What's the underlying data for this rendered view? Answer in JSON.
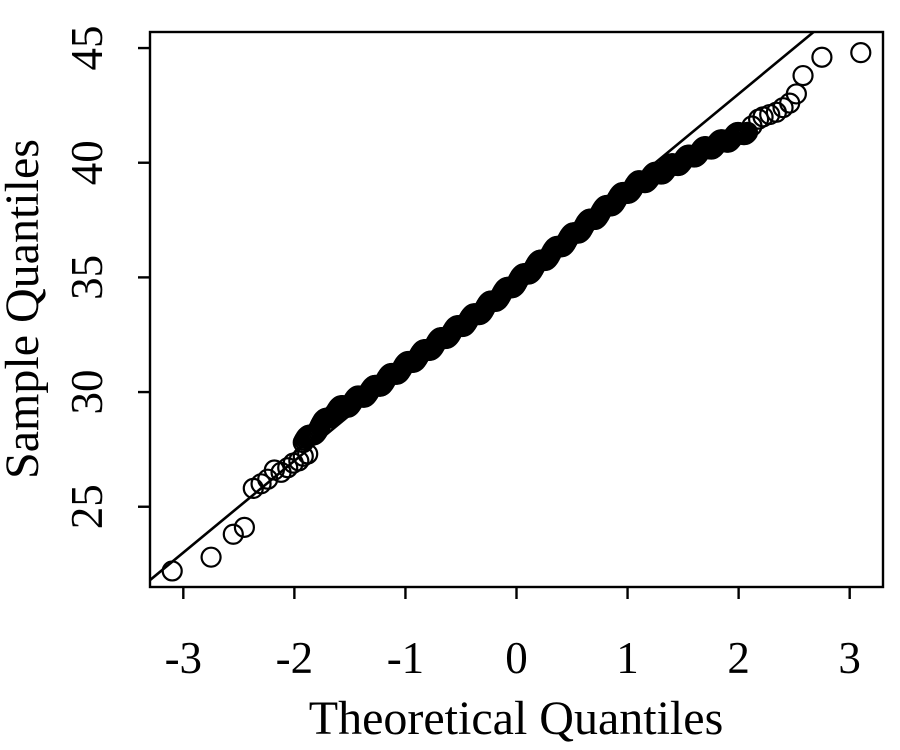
{
  "chart_data": {
    "type": "scatter",
    "title": "",
    "xlabel": "Theoretical Quantiles",
    "ylabel": "Sample Quantiles",
    "xlim": [
      -3.3,
      3.3
    ],
    "ylim": [
      21.5,
      45.7
    ],
    "xticks": [
      -3,
      -2,
      -1,
      0,
      1,
      2,
      3
    ],
    "yticks": [
      25,
      30,
      35,
      40,
      45
    ],
    "xtick_labels": [
      "-3",
      "-2",
      "-1",
      "0",
      "1",
      "2",
      "3"
    ],
    "ytick_labels": [
      "25",
      "30",
      "35",
      "40",
      "45"
    ],
    "grid": false,
    "legend": "none",
    "marker": "open-circle",
    "reference_line": {
      "intercept": 35.0,
      "slope": 4.0
    },
    "series": [
      {
        "points": [
          [
            -3.1,
            22.2
          ],
          [
            -2.75,
            22.8
          ],
          [
            -2.55,
            23.8
          ],
          [
            -2.45,
            24.1
          ],
          [
            -2.37,
            25.8
          ],
          [
            -2.3,
            26.0
          ],
          [
            -2.24,
            26.2
          ],
          [
            -2.18,
            26.6
          ],
          [
            -2.12,
            26.5
          ],
          [
            -2.06,
            26.7
          ],
          [
            -2.01,
            26.9
          ],
          [
            -1.96,
            27.0
          ],
          [
            -1.92,
            27.2
          ],
          [
            -1.88,
            27.3
          ]
        ]
      },
      {
        "points": [
          [
            2.12,
            41.6
          ],
          [
            2.18,
            41.9
          ],
          [
            2.22,
            42.0
          ],
          [
            2.28,
            42.1
          ],
          [
            2.34,
            42.2
          ],
          [
            2.4,
            42.4
          ],
          [
            2.46,
            42.6
          ],
          [
            2.52,
            43.0
          ],
          [
            2.58,
            43.8
          ],
          [
            2.75,
            44.6
          ],
          [
            3.1,
            44.8
          ]
        ]
      }
    ],
    "dense_band": {
      "x_from": -1.92,
      "x_to": 2.08,
      "count": 400,
      "profile": [
        [
          -1.92,
          27.8
        ],
        [
          -1.85,
          28.1
        ],
        [
          -1.75,
          28.6
        ],
        [
          -1.65,
          29.1
        ],
        [
          -1.5,
          29.5
        ],
        [
          -1.3,
          30.1
        ],
        [
          -1.1,
          30.8
        ],
        [
          -0.9,
          31.5
        ],
        [
          -0.7,
          32.2
        ],
        [
          -0.5,
          32.9
        ],
        [
          -0.3,
          33.6
        ],
        [
          -0.1,
          34.4
        ],
        [
          0.1,
          35.2
        ],
        [
          0.3,
          36.0
        ],
        [
          0.5,
          36.8
        ],
        [
          0.7,
          37.6
        ],
        [
          0.9,
          38.4
        ],
        [
          1.1,
          39.1
        ],
        [
          1.3,
          39.6
        ],
        [
          1.5,
          40.1
        ],
        [
          1.7,
          40.6
        ],
        [
          1.9,
          41.0
        ],
        [
          2.08,
          41.4
        ]
      ]
    }
  }
}
